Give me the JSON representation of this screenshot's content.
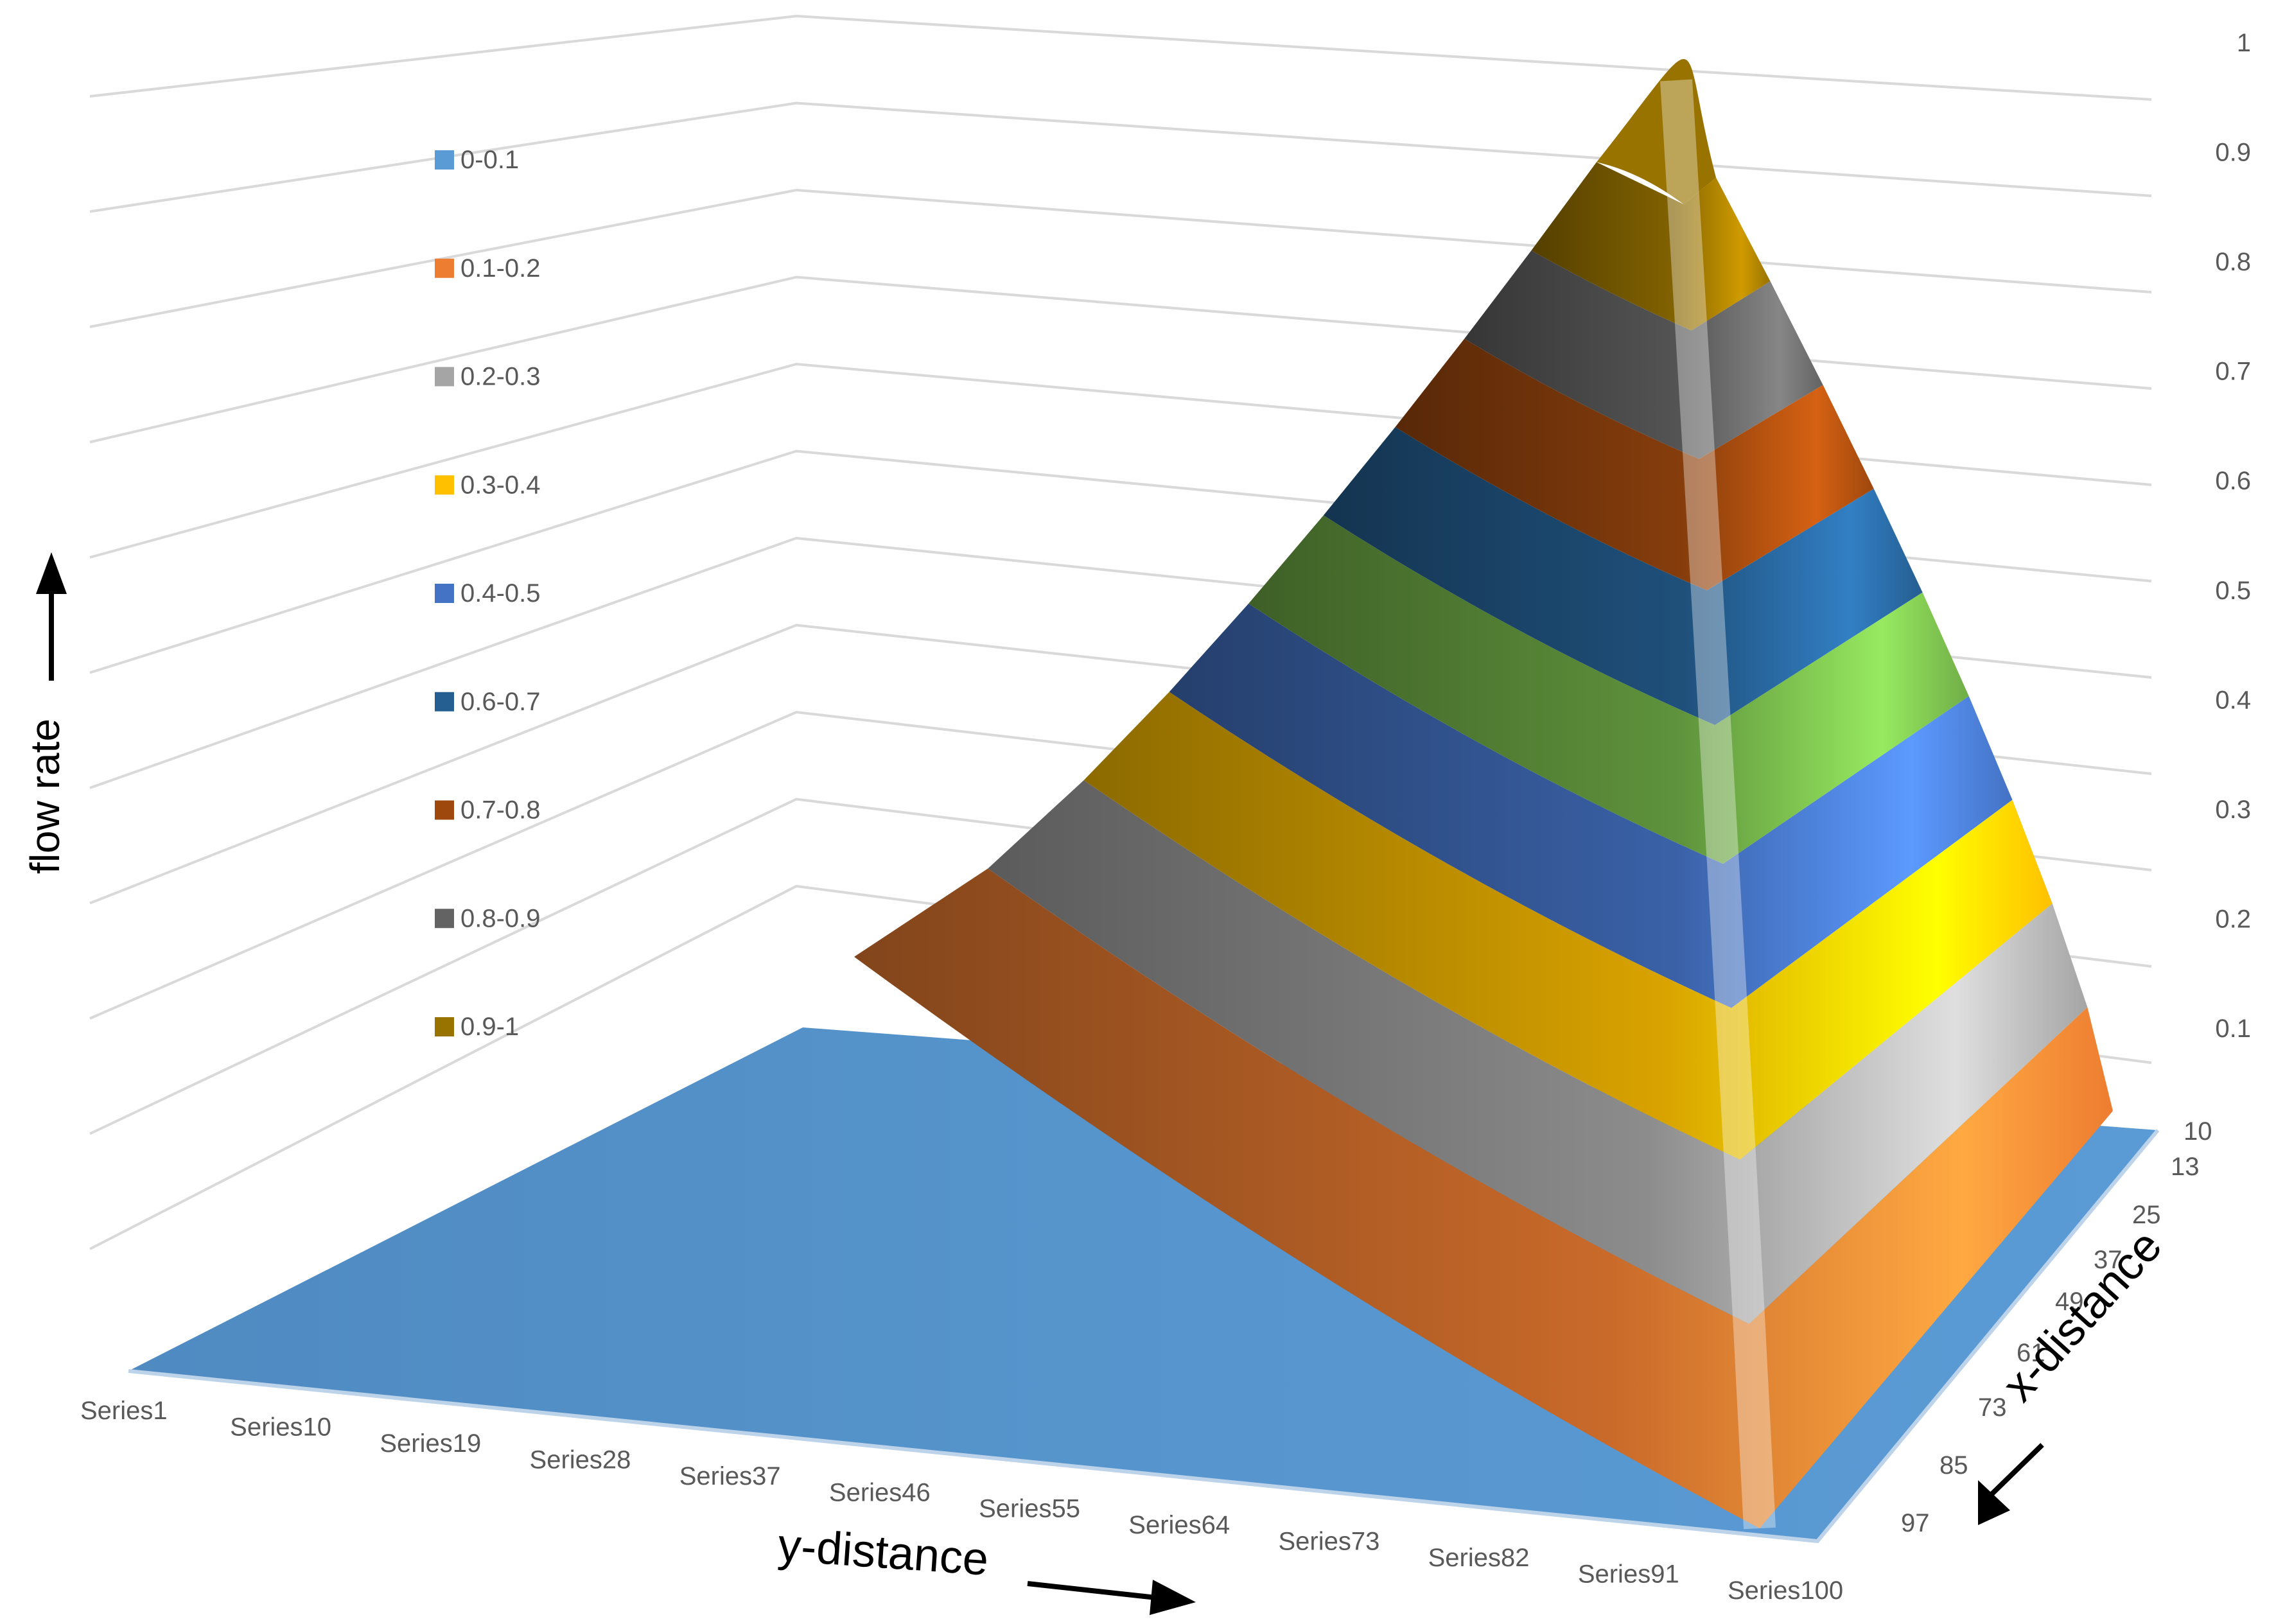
{
  "chart_data": {
    "type": "surface",
    "title": "",
    "zlabel": "flow rate",
    "xlabel": "x-distance",
    "ylabel": "y-distance",
    "zlim": [
      0,
      1
    ],
    "z_ticks": [
      "1",
      "0.9",
      "0.8",
      "0.7",
      "0.6",
      "0.5",
      "0.4",
      "0.3",
      "0.2",
      "0.1"
    ],
    "y_categories": [
      "Series1",
      "Series10",
      "Series19",
      "Series28",
      "Series37",
      "Series46",
      "Series55",
      "Series64",
      "Series73",
      "Series82",
      "Series91",
      "Series100"
    ],
    "x_ticks": [
      "10",
      "13",
      "25",
      "37",
      "49",
      "61",
      "73",
      "85",
      "97"
    ],
    "series": [
      {
        "name": "0-0.1",
        "range": [
          0,
          0.1
        ],
        "color": "#5B9BD5"
      },
      {
        "name": "0.1-0.2",
        "range": [
          0.1,
          0.2
        ],
        "color": "#ED7D31"
      },
      {
        "name": "0.2-0.3",
        "range": [
          0.2,
          0.3
        ],
        "color": "#A5A5A5"
      },
      {
        "name": "0.3-0.4",
        "range": [
          0.3,
          0.4
        ],
        "color": "#FFC000"
      },
      {
        "name": "0.4-0.5",
        "range": [
          0.4,
          0.5
        ],
        "color": "#4472C4"
      },
      {
        "name": "0.6-0.7",
        "range": [
          0.6,
          0.7
        ],
        "color": "#255E91"
      },
      {
        "name": "0.7-0.8",
        "range": [
          0.7,
          0.8
        ],
        "color": "#9E480E"
      },
      {
        "name": "0.8-0.9",
        "range": [
          0.8,
          0.9
        ],
        "color": "#636363"
      },
      {
        "name": "0.9-1",
        "range": [
          0.9,
          1.0
        ],
        "color": "#997300"
      }
    ],
    "unlisted_band": {
      "range": [
        0.5,
        0.6
      ],
      "color": "#70AD47"
    },
    "peak": {
      "x": 10,
      "y": "Series100",
      "z": 0.99
    },
    "legend_position": "left",
    "grid": true
  }
}
